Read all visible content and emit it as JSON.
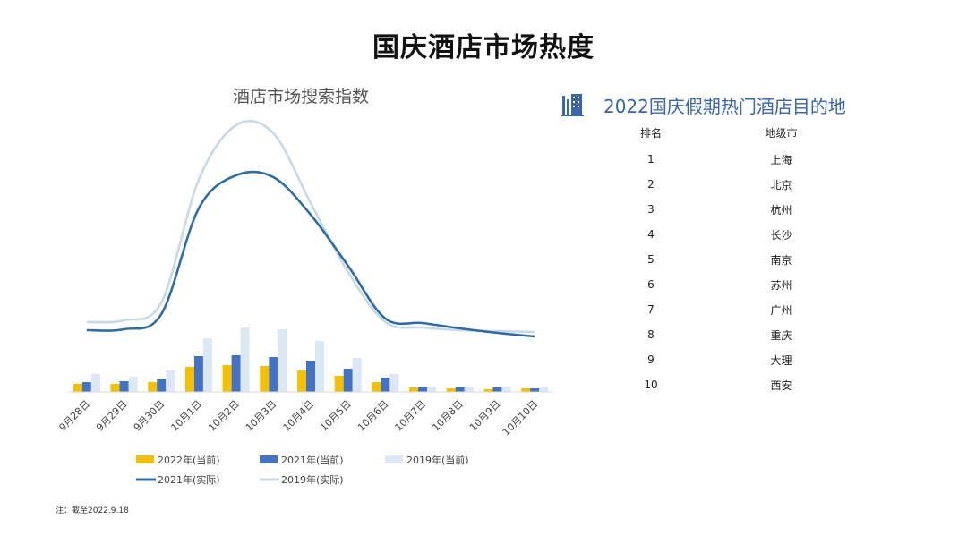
{
  "page_title": "国庆酒店市场热度",
  "note": "注：截至2022.9.18",
  "chart_data": {
    "type": "bar+line",
    "title": "酒店市场搜索指数",
    "categories": [
      "9月28日",
      "9月29日",
      "9月30日",
      "10月1日",
      "10月2日",
      "10月3日",
      "10月4日",
      "10月5日",
      "10月6日",
      "10月7日",
      "10月8日",
      "10月9日",
      "10月10日"
    ],
    "bar_series": [
      {
        "name": "2022年(当前)",
        "color": "#f5c000",
        "values": [
          9,
          9,
          11,
          28,
          30,
          29,
          24,
          18,
          11,
          5,
          4,
          3,
          4
        ]
      },
      {
        "name": "2021年(当前)",
        "color": "#4472c4",
        "values": [
          11,
          12,
          14,
          40,
          41,
          39,
          35,
          26,
          16,
          6,
          6,
          5,
          4
        ]
      },
      {
        "name": "2019年(当前)",
        "color": "#dde8f6",
        "values": [
          20,
          17,
          24,
          60,
          72,
          70,
          57,
          38,
          20,
          6,
          6,
          6,
          6
        ]
      }
    ],
    "line_series": [
      {
        "name": "2021年(实际)",
        "color": "#2e6ca4",
        "values": [
          69,
          70,
          87,
          205,
          242,
          240,
          198,
          141,
          82,
          77,
          71,
          66,
          62
        ]
      },
      {
        "name": "2019年(实际)",
        "color": "#c7d9e8",
        "values": [
          78,
          80,
          100,
          237,
          298,
          289,
          211,
          134,
          78,
          72,
          69,
          68,
          67
        ]
      }
    ],
    "legend": [
      "2022年(当前)",
      "2021年(当前)",
      "2019年(当前)",
      "2021年(实际)",
      "2019年(实际)"
    ],
    "legend_position": "bottom",
    "ylim": [
      0,
      300
    ],
    "grid": false
  },
  "ranking": {
    "title": "2022国庆假期热门酒店目的地",
    "headers": [
      "排名",
      "地级市"
    ],
    "rows": [
      [
        "1",
        "上海"
      ],
      [
        "2",
        "北京"
      ],
      [
        "3",
        "杭州"
      ],
      [
        "4",
        "长沙"
      ],
      [
        "5",
        "南京"
      ],
      [
        "6",
        "苏州"
      ],
      [
        "7",
        "广州"
      ],
      [
        "8",
        "重庆"
      ],
      [
        "9",
        "大理"
      ],
      [
        "10",
        "西安"
      ]
    ]
  }
}
